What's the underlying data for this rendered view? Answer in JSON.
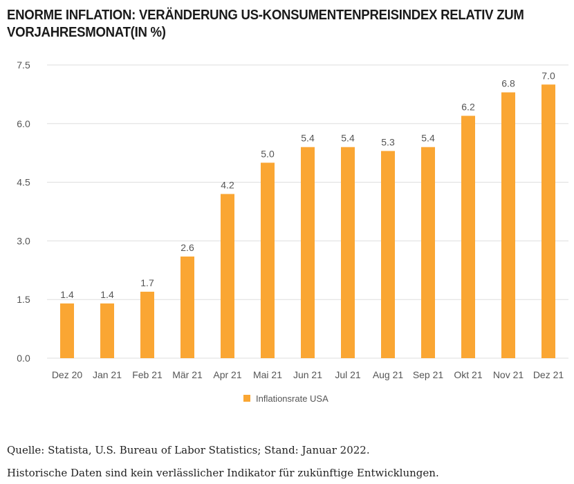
{
  "chart_title": "ENORME INFLATION: VERÄNDERUNG US-KONSUMENTENPREISINDEX RELATIV ZUM VORJAHRESMONAT(IN %)",
  "colors": {
    "bar": "#FAA633",
    "grid": "#dddddd",
    "axis_text": "#555555"
  },
  "chart_data": {
    "type": "bar",
    "categories": [
      "Dez 20",
      "Jan 21",
      "Feb 21",
      "Mär 21",
      "Apr 21",
      "Mai 21",
      "Jun 21",
      "Jul 21",
      "Aug 21",
      "Sep 21",
      "Okt 21",
      "Nov 21",
      "Dez 21"
    ],
    "series": [
      {
        "name": "Inflationsrate USA",
        "values": [
          1.4,
          1.4,
          1.7,
          2.6,
          4.2,
          5.0,
          5.4,
          5.4,
          5.3,
          5.4,
          6.2,
          6.8,
          7.0
        ]
      }
    ],
    "value_labels": [
      "1.4",
      "1.4",
      "1.7",
      "2.6",
      "4.2",
      "5.0",
      "5.4",
      "5.4",
      "5.3",
      "5.4",
      "6.2",
      "6.8",
      "7.0"
    ],
    "yticks": [
      0,
      1.5,
      3,
      4.5,
      6,
      7.5
    ],
    "ytick_labels": [
      "0.0",
      "1.5",
      "3.0",
      "4.5",
      "6.0",
      "7.5"
    ],
    "ylim": [
      0,
      7.5
    ],
    "grid": true,
    "legend_position": "bottom-center"
  },
  "footer": {
    "source": "Quelle: Statista, U.S. Bureau of Labor Statistics; Stand: Januar 2022.",
    "disclaimer": "Historische Daten sind kein verlässlicher Indikator für zukünftige Entwicklungen."
  }
}
